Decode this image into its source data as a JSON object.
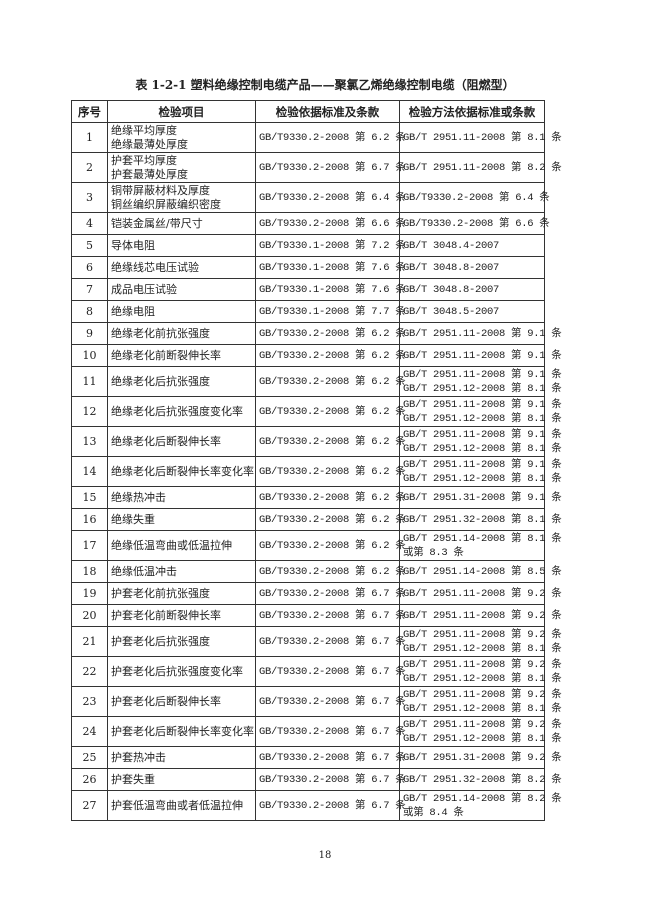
{
  "title": "表 1-2-1 塑料绝缘控制电缆产品——聚氯乙烯绝缘控制电缆（阻燃型）",
  "headers": [
    "序号",
    "检验项目",
    "检验依据标准及条款",
    "检验方法依据标准或条款"
  ],
  "rows": [
    {
      "no": "1",
      "item": [
        "绝缘平均厚度",
        "绝缘最薄处厚度"
      ],
      "basis": "GB/T9330.2-2008 第 6.2 条",
      "method": [
        "GB/T 2951.11-2008 第 8.1 条"
      ]
    },
    {
      "no": "2",
      "item": [
        "护套平均厚度",
        "护套最薄处厚度"
      ],
      "basis": "GB/T9330.2-2008 第 6.7 条",
      "method": [
        "GB/T 2951.11-2008 第 8.2 条"
      ]
    },
    {
      "no": "3",
      "item": [
        "铜带屏蔽材料及厚度",
        "铜丝编织屏蔽编织密度"
      ],
      "basis": "GB/T9330.2-2008 第 6.4 条",
      "method": [
        "GB/T9330.2-2008 第 6.4 条"
      ]
    },
    {
      "no": "4",
      "item": [
        "铠装金属丝/带尺寸"
      ],
      "basis": "GB/T9330.2-2008 第 6.6 条",
      "method": [
        "GB/T9330.2-2008 第 6.6 条"
      ]
    },
    {
      "no": "5",
      "item": [
        "导体电阻"
      ],
      "basis": "GB/T9330.1-2008 第 7.2 条",
      "method": [
        "GB/T 3048.4-2007"
      ]
    },
    {
      "no": "6",
      "item": [
        "绝缘线芯电压试验"
      ],
      "basis": "GB/T9330.1-2008 第 7.6 条",
      "method": [
        "GB/T 3048.8-2007"
      ]
    },
    {
      "no": "7",
      "item": [
        "成品电压试验"
      ],
      "basis": "GB/T9330.1-2008 第 7.6 条",
      "method": [
        "GB/T 3048.8-2007"
      ]
    },
    {
      "no": "8",
      "item": [
        "绝缘电阻"
      ],
      "basis": "GB/T9330.1-2008 第 7.7 条",
      "method": [
        "GB/T 3048.5-2007"
      ]
    },
    {
      "no": "9",
      "item": [
        "绝缘老化前抗张强度"
      ],
      "basis": "GB/T9330.2-2008 第 6.2 条",
      "method": [
        "GB/T 2951.11-2008 第 9.1 条"
      ]
    },
    {
      "no": "10",
      "item": [
        "绝缘老化前断裂伸长率"
      ],
      "basis": "GB/T9330.2-2008 第 6.2 条",
      "method": [
        "GB/T 2951.11-2008 第 9.1 条"
      ]
    },
    {
      "no": "11",
      "item": [
        "绝缘老化后抗张强度"
      ],
      "basis": "GB/T9330.2-2008 第 6.2 条",
      "method": [
        "GB/T 2951.11-2008 第 9.1 条",
        "GB/T 2951.12-2008 第 8.1 条"
      ]
    },
    {
      "no": "12",
      "item": [
        "绝缘老化后抗张强度变化率"
      ],
      "basis": "GB/T9330.2-2008 第 6.2 条",
      "method": [
        "GB/T 2951.11-2008 第 9.1 条",
        "GB/T 2951.12-2008 第 8.1 条"
      ]
    },
    {
      "no": "13",
      "item": [
        "绝缘老化后断裂伸长率"
      ],
      "basis": "GB/T9330.2-2008 第 6.2 条",
      "method": [
        "GB/T 2951.11-2008 第 9.1 条",
        "GB/T 2951.12-2008 第 8.1 条"
      ]
    },
    {
      "no": "14",
      "item": [
        "绝缘老化后断裂伸长率变化率"
      ],
      "basis": "GB/T9330.2-2008 第 6.2 条",
      "method": [
        "GB/T 2951.11-2008 第 9.1 条",
        "GB/T 2951.12-2008 第 8.1 条"
      ]
    },
    {
      "no": "15",
      "item": [
        "绝缘热冲击"
      ],
      "basis": "GB/T9330.2-2008 第 6.2 条",
      "method": [
        "GB/T 2951.31-2008 第 9.1 条"
      ]
    },
    {
      "no": "16",
      "item": [
        "绝缘失重"
      ],
      "basis": "GB/T9330.2-2008 第 6.2 条",
      "method": [
        "GB/T 2951.32-2008 第 8.1 条"
      ]
    },
    {
      "no": "17",
      "item": [
        "绝缘低温弯曲或低温拉伸"
      ],
      "basis": "GB/T9330.2-2008 第 6.2 条",
      "method": [
        "GB/T 2951.14-2008 第 8.1 条",
        "或第 8.3 条"
      ]
    },
    {
      "no": "18",
      "item": [
        "绝缘低温冲击"
      ],
      "basis": "GB/T9330.2-2008 第 6.2 条",
      "method": [
        "GB/T 2951.14-2008 第 8.5 条"
      ]
    },
    {
      "no": "19",
      "item": [
        "护套老化前抗张强度"
      ],
      "basis": "GB/T9330.2-2008 第 6.7 条",
      "method": [
        "GB/T 2951.11-2008 第 9.2 条"
      ]
    },
    {
      "no": "20",
      "item": [
        "护套老化前断裂伸长率"
      ],
      "basis": "GB/T9330.2-2008 第 6.7 条",
      "method": [
        "GB/T 2951.11-2008 第 9.2 条"
      ]
    },
    {
      "no": "21",
      "item": [
        "护套老化后抗张强度"
      ],
      "basis": "GB/T9330.2-2008 第 6.7 条",
      "method": [
        "GB/T 2951.11-2008 第 9.2 条",
        "GB/T 2951.12-2008 第 8.1 条"
      ]
    },
    {
      "no": "22",
      "item": [
        "护套老化后抗张强度变化率"
      ],
      "basis": "GB/T9330.2-2008 第 6.7 条",
      "method": [
        "GB/T 2951.11-2008 第 9.2 条",
        "GB/T 2951.12-2008 第 8.1 条"
      ]
    },
    {
      "no": "23",
      "item": [
        "护套老化后断裂伸长率"
      ],
      "basis": "GB/T9330.2-2008 第 6.7 条",
      "method": [
        "GB/T 2951.11-2008 第 9.2 条",
        "GB/T 2951.12-2008 第 8.1 条"
      ]
    },
    {
      "no": "24",
      "item": [
        "护套老化后断裂伸长率变化率"
      ],
      "basis": "GB/T9330.2-2008 第 6.7 条",
      "method": [
        "GB/T 2951.11-2008 第 9.2 条",
        "GB/T 2951.12-2008 第 8.1 条"
      ]
    },
    {
      "no": "25",
      "item": [
        "护套热冲击"
      ],
      "basis": "GB/T9330.2-2008 第 6.7 条",
      "method": [
        "GB/T 2951.31-2008 第 9.2 条"
      ]
    },
    {
      "no": "26",
      "item": [
        "护套失重"
      ],
      "basis": "GB/T9330.2-2008 第 6.7 条",
      "method": [
        "GB/T 2951.32-2008 第 8.2 条"
      ]
    },
    {
      "no": "27",
      "item": [
        "护套低温弯曲或者低温拉伸"
      ],
      "basis": "GB/T9330.2-2008 第 6.7 条",
      "method": [
        "GB/T 2951.14-2008 第 8.2 条",
        "或第 8.4 条"
      ]
    }
  ],
  "page_number": "18"
}
